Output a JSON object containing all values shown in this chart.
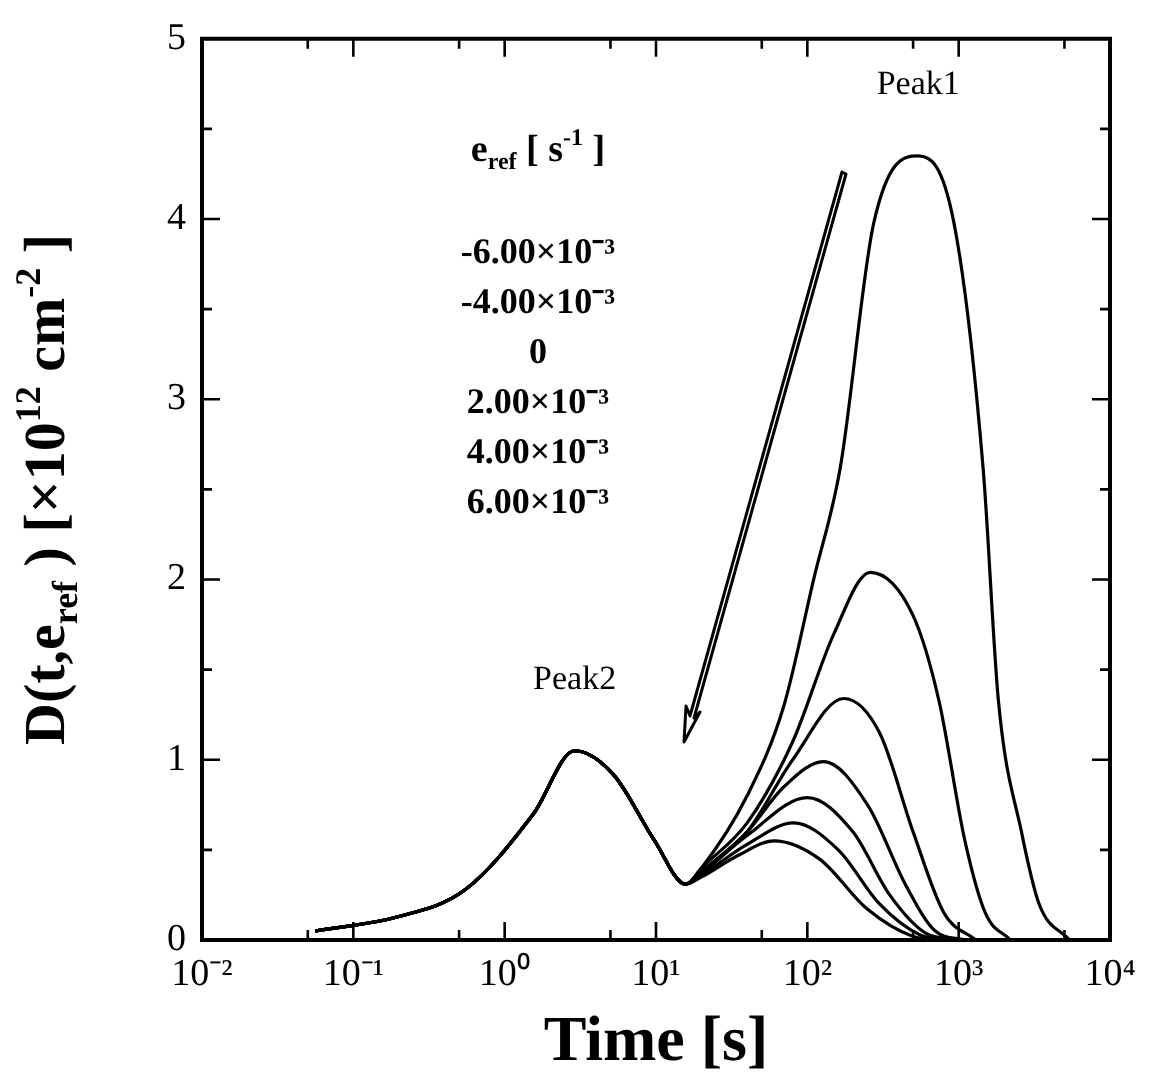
{
  "chart_data": {
    "type": "line",
    "xlabel": "Time [s]",
    "ylabel": "D(t,e$_{ref}$ ) [×10$^{12}$ cm$^{-2}$ ]",
    "legend_title": "e$_{ref}$ [ s$^{-1}$ ]",
    "log": "x",
    "xlim": [
      0.01,
      10000
    ],
    "ylim": [
      0,
      5
    ],
    "xticks": [
      {
        "value": 0.01,
        "label": "10⁻²"
      },
      {
        "value": 0.05,
        "label": null
      },
      {
        "value": 0.1,
        "label": "10⁻¹"
      },
      {
        "value": 0.5,
        "label": null
      },
      {
        "value": 1,
        "label": "10⁰"
      },
      {
        "value": 5,
        "label": null
      },
      {
        "value": 10,
        "label": "10¹"
      },
      {
        "value": 50,
        "label": null
      },
      {
        "value": 100,
        "label": "10²"
      },
      {
        "value": 500,
        "label": null
      },
      {
        "value": 1000,
        "label": "10³"
      },
      {
        "value": 5000,
        "label": null
      },
      {
        "value": 10000,
        "label": "10⁴"
      }
    ],
    "yticks": [
      0,
      {
        "value": 0.5,
        "label": null
      },
      1,
      {
        "value": 1.5,
        "label": null
      },
      2,
      {
        "value": 2.5,
        "label": null
      },
      3,
      {
        "value": 3.5,
        "label": null
      },
      4,
      {
        "value": 4.5,
        "label": null
      },
      5
    ],
    "grid": false,
    "marker": "none",
    "line_style": "solid",
    "annotations": [
      {
        "text": "Peak1",
        "x": 540,
        "y": 4.35
      },
      {
        "text": "Peak2",
        "x": 2.9,
        "y": 1.05
      },
      "-6.00×10⁻³",
      "-4.00×10⁻³",
      "0",
      "2.00×10⁻³",
      "4.00×10⁻³",
      "6.00×10⁻³"
    ],
    "series": [
      {
        "color": "#000000",
        "x": [
          0.056,
          0.2,
          0.55,
          1.55,
          2.9,
          5.2,
          9.8,
          15.7,
          20,
          40,
          70,
          110,
          165,
          275,
          540,
          930,
          1450,
          1830,
          2600,
          3400,
          5400
        ],
        "values": [
          0.05,
          0.13,
          0.28,
          0.7,
          1.05,
          0.92,
          0.55,
          0.31,
          0.4,
          0.8,
          1.3,
          2.0,
          2.62,
          3.98,
          4.35,
          3.98,
          2.62,
          1.33,
          0.6,
          0.2,
          0
        ]
      },
      {
        "color": "#000000",
        "x": [
          0.056,
          0.2,
          0.55,
          1.55,
          2.9,
          5.2,
          9.8,
          15.7,
          20,
          40,
          80,
          150,
          260,
          500,
          740,
          1100,
          1500,
          2200
        ],
        "values": [
          0.05,
          0.13,
          0.28,
          0.7,
          1.05,
          0.92,
          0.55,
          0.31,
          0.4,
          0.65,
          1.1,
          1.7,
          2.04,
          1.8,
          1.33,
          0.55,
          0.15,
          0
        ]
      },
      {
        "color": "#000000",
        "x": [
          0.056,
          0.2,
          0.55,
          1.55,
          2.9,
          5.2,
          9.8,
          15.7,
          20,
          40,
          80,
          174,
          300,
          500,
          800,
          1300
        ],
        "values": [
          0.05,
          0.13,
          0.28,
          0.7,
          1.05,
          0.92,
          0.55,
          0.31,
          0.38,
          0.6,
          1.0,
          1.34,
          1.15,
          0.6,
          0.15,
          0
        ]
      },
      {
        "color": "#000000",
        "x": [
          0.056,
          0.2,
          0.55,
          1.55,
          2.9,
          5.2,
          9.8,
          15.7,
          20,
          40,
          70,
          128,
          250,
          450,
          700,
          1100
        ],
        "values": [
          0.05,
          0.13,
          0.28,
          0.7,
          1.05,
          0.92,
          0.55,
          0.31,
          0.38,
          0.6,
          0.85,
          0.99,
          0.75,
          0.3,
          0.05,
          0
        ]
      },
      {
        "color": "#000000",
        "x": [
          0.056,
          0.2,
          0.55,
          1.55,
          2.9,
          5.2,
          9.8,
          15.7,
          20,
          40,
          100,
          200,
          350,
          600,
          1000
        ],
        "values": [
          0.05,
          0.13,
          0.28,
          0.7,
          1.05,
          0.92,
          0.55,
          0.31,
          0.37,
          0.58,
          0.79,
          0.6,
          0.25,
          0.04,
          0
        ]
      },
      {
        "color": "#000000",
        "x": [
          0.056,
          0.2,
          0.55,
          1.55,
          2.9,
          5.2,
          9.8,
          15.7,
          20,
          40,
          81,
          160,
          300,
          550,
          900
        ],
        "values": [
          0.05,
          0.13,
          0.28,
          0.7,
          1.05,
          0.92,
          0.55,
          0.31,
          0.36,
          0.53,
          0.65,
          0.5,
          0.2,
          0.03,
          0
        ]
      },
      {
        "color": "#000000",
        "x": [
          0.056,
          0.2,
          0.55,
          1.55,
          2.9,
          5.2,
          9.8,
          15.7,
          20,
          35,
          60,
          120,
          250,
          500,
          800
        ],
        "values": [
          0.05,
          0.13,
          0.28,
          0.7,
          1.05,
          0.92,
          0.55,
          0.31,
          0.35,
          0.47,
          0.55,
          0.45,
          0.17,
          0.02,
          0
        ]
      }
    ]
  }
}
